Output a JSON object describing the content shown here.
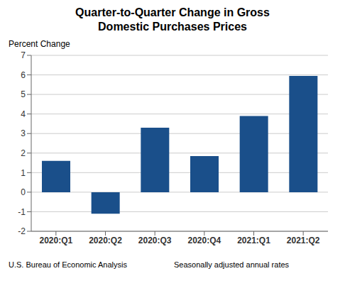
{
  "chart_data": {
    "type": "bar",
    "title": "Quarter-to-Quarter Change in Gross\nDomestic Purchases Prices",
    "ylabel": "Percent Change",
    "categories": [
      "2020:Q1",
      "2020:Q2",
      "2020:Q3",
      "2020:Q4",
      "2021:Q1",
      "2021:Q2"
    ],
    "values": [
      1.6,
      -1.1,
      3.3,
      1.85,
      3.9,
      5.95
    ],
    "color": "#1a4f8a",
    "ylim": [
      -2,
      7
    ],
    "yticks": [
      -2,
      -1,
      0,
      1,
      2,
      3,
      4,
      5,
      6,
      7
    ],
    "grid": true,
    "annotations": [
      "U.S. Bureau of Economic Analysis",
      "Seasonally adjusted annual rates"
    ]
  }
}
